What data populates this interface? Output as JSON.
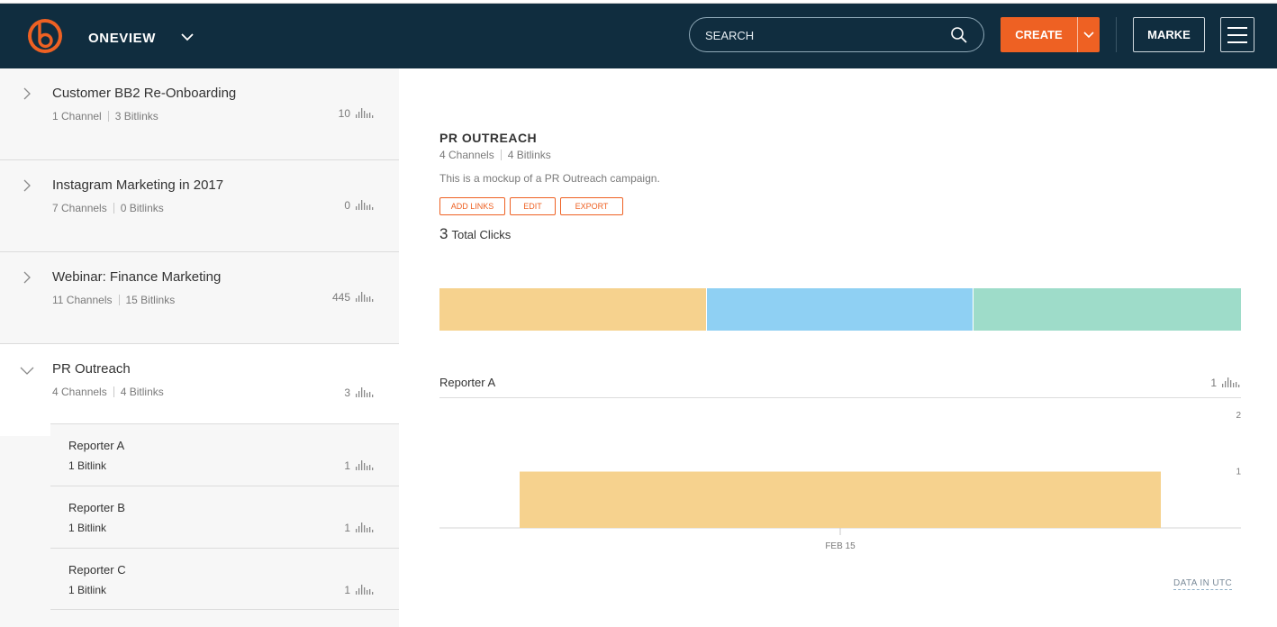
{
  "header": {
    "brand": "ONEVIEW",
    "search_placeholder": "SEARCH",
    "create_label": "CREATE",
    "account_label": "MARKE",
    "accent": "#ee6123",
    "background": "#102d3f"
  },
  "sidebar": {
    "campaigns": [
      {
        "title": "Customer BB2 Re-Onboarding",
        "channels": "1 Channel",
        "bitlinks": "3 Bitlinks",
        "clicks": "10",
        "expanded": false
      },
      {
        "title": "Instagram Marketing in 2017",
        "channels": "7 Channels",
        "bitlinks": "0 Bitlinks",
        "clicks": "0",
        "expanded": false
      },
      {
        "title": "Webinar: Finance Marketing",
        "channels": "11 Channels",
        "bitlinks": "15 Bitlinks",
        "clicks": "445",
        "expanded": false
      },
      {
        "title": "PR Outreach",
        "channels": "4 Channels",
        "bitlinks": "4 Bitlinks",
        "clicks": "3",
        "expanded": true
      }
    ],
    "channels": [
      {
        "title": "Reporter A",
        "bitlinks": "1 Bitlink",
        "clicks": "1"
      },
      {
        "title": "Reporter B",
        "bitlinks": "1 Bitlink",
        "clicks": "1"
      },
      {
        "title": "Reporter C",
        "bitlinks": "1 Bitlink",
        "clicks": "1"
      }
    ]
  },
  "detail": {
    "title": "PR OUTREACH",
    "channels": "4 Channels",
    "bitlinks": "4 Bitlinks",
    "description": "This is a mockup of a PR Outreach campaign.",
    "buttons": {
      "add_links": "ADD LINKS",
      "edit": "EDIT",
      "export": "EXPORT"
    },
    "total_clicks": "3",
    "total_clicks_label": "Total Clicks",
    "breakdown": [
      {
        "share": 1,
        "color": "#f6d28e"
      },
      {
        "share": 1,
        "color": "#8fd0f3"
      },
      {
        "share": 1,
        "color": "#9edcc9"
      }
    ],
    "channel_panel": {
      "title": "Reporter A",
      "clicks": "1"
    },
    "data_in_utc": "DATA IN UTC"
  },
  "chart_data": {
    "type": "bar",
    "categories": [
      "FEB 15"
    ],
    "values": [
      1
    ],
    "ylim": [
      0,
      2
    ],
    "yticks": [
      "2",
      "1"
    ],
    "bar_color": "#f6d28e",
    "grid": false
  }
}
